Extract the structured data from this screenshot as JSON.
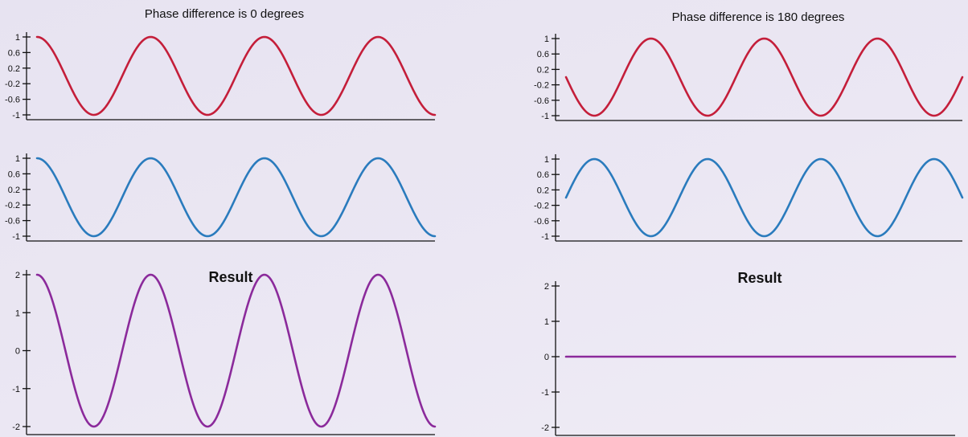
{
  "panels": [
    {
      "title": "Phase difference is 0 degrees",
      "charts": [
        {
          "type": "line",
          "role": "wave-1",
          "title": "",
          "color": "#c41e3a",
          "ylim": [
            -1,
            1
          ],
          "yticks": [
            1,
            0.6,
            0.2,
            -0.2,
            -0.6,
            -1
          ],
          "ytick_labels": [
            "1",
            "0.6",
            "0.2",
            "-0.2",
            "-0.6",
            "-1"
          ],
          "wave": {
            "amplitude": 1,
            "cycles": 3.5,
            "phase_deg": 90
          },
          "series": [
            {
              "values_formula": "y = sin(2π·3.5·x + 90°)"
            }
          ]
        },
        {
          "type": "line",
          "role": "wave-2",
          "title": "",
          "color": "#2a7bbd",
          "ylim": [
            -1,
            1
          ],
          "yticks": [
            1,
            0.6,
            0.2,
            -0.2,
            -0.6,
            -1
          ],
          "ytick_labels": [
            "1",
            "0.6",
            "0.2",
            "-0.2",
            "-0.6",
            "-1"
          ],
          "wave": {
            "amplitude": 1,
            "cycles": 3.5,
            "phase_deg": 90
          },
          "series": [
            {
              "values_formula": "y = sin(2π·3.5·x + 90°)"
            }
          ]
        },
        {
          "type": "line",
          "role": "result",
          "title": "Result",
          "color": "#8b2a9b",
          "ylim": [
            -2,
            2
          ],
          "yticks": [
            2,
            1,
            0,
            -1,
            -2
          ],
          "ytick_labels": [
            "2",
            "1",
            "0",
            "-1",
            "-2"
          ],
          "wave": {
            "amplitude": 2,
            "cycles": 3.5,
            "phase_deg": 90
          },
          "series": [
            {
              "values_formula": "y = 2·sin(2π·3.5·x + 90°)"
            }
          ]
        }
      ]
    },
    {
      "title": "Phase difference is 180 degrees",
      "charts": [
        {
          "type": "line",
          "role": "wave-1",
          "title": "",
          "color": "#c41e3a",
          "ylim": [
            -1,
            1
          ],
          "yticks": [
            1,
            0.6,
            0.2,
            -0.2,
            -0.6,
            -1
          ],
          "ytick_labels": [
            "1",
            "0.6",
            "0.2",
            "-0.2",
            "-0.6",
            "-1"
          ],
          "wave": {
            "amplitude": 1,
            "cycles": 3.5,
            "phase_deg": 180
          },
          "series": [
            {
              "values_formula": "y = sin(2π·3.5·x + 180°)"
            }
          ]
        },
        {
          "type": "line",
          "role": "wave-2",
          "title": "",
          "color": "#2a7bbd",
          "ylim": [
            -1,
            1
          ],
          "yticks": [
            1,
            0.6,
            0.2,
            -0.2,
            -0.6,
            -1
          ],
          "ytick_labels": [
            "1",
            "0.6",
            "0.2",
            "-0.2",
            "-0.6",
            "-1"
          ],
          "wave": {
            "amplitude": 1,
            "cycles": 3.5,
            "phase_deg": 0
          },
          "series": [
            {
              "values_formula": "y = sin(2π·3.5·x)"
            }
          ]
        },
        {
          "type": "line",
          "role": "result",
          "title": "Result",
          "color": "#8b2a9b",
          "ylim": [
            -2,
            2
          ],
          "yticks": [
            2,
            1,
            0,
            -1,
            -2
          ],
          "ytick_labels": [
            "2",
            "1",
            "0",
            "-1",
            "-2"
          ],
          "wave": {
            "amplitude": 0,
            "cycles": 3.5,
            "phase_deg": 0
          },
          "series": [
            {
              "values_formula": "y = 0"
            }
          ]
        }
      ]
    }
  ],
  "chart_data": [
    {
      "type": "line",
      "title": "Phase difference is 0 degrees",
      "ylim": [
        -1,
        1
      ],
      "series": [
        {
          "amplitude": 1,
          "cycles": 3.5,
          "phase_deg": 90
        }
      ]
    },
    {
      "type": "line",
      "title": "",
      "ylim": [
        -1,
        1
      ],
      "series": [
        {
          "amplitude": 1,
          "cycles": 3.5,
          "phase_deg": 90
        }
      ]
    },
    {
      "type": "line",
      "title": "Result",
      "ylim": [
        -2,
        2
      ],
      "series": [
        {
          "amplitude": 2,
          "cycles": 3.5,
          "phase_deg": 90
        }
      ]
    },
    {
      "type": "line",
      "title": "Phase difference is 180 degrees",
      "ylim": [
        -1,
        1
      ],
      "series": [
        {
          "amplitude": 1,
          "cycles": 3.5,
          "phase_deg": 180
        }
      ]
    },
    {
      "type": "line",
      "title": "",
      "ylim": [
        -1,
        1
      ],
      "series": [
        {
          "amplitude": 1,
          "cycles": 3.5,
          "phase_deg": 0
        }
      ]
    },
    {
      "type": "line",
      "title": "Result",
      "ylim": [
        -2,
        2
      ],
      "series": [
        {
          "amplitude": 0,
          "cycles": 3.5,
          "phase_deg": 0
        }
      ]
    }
  ]
}
